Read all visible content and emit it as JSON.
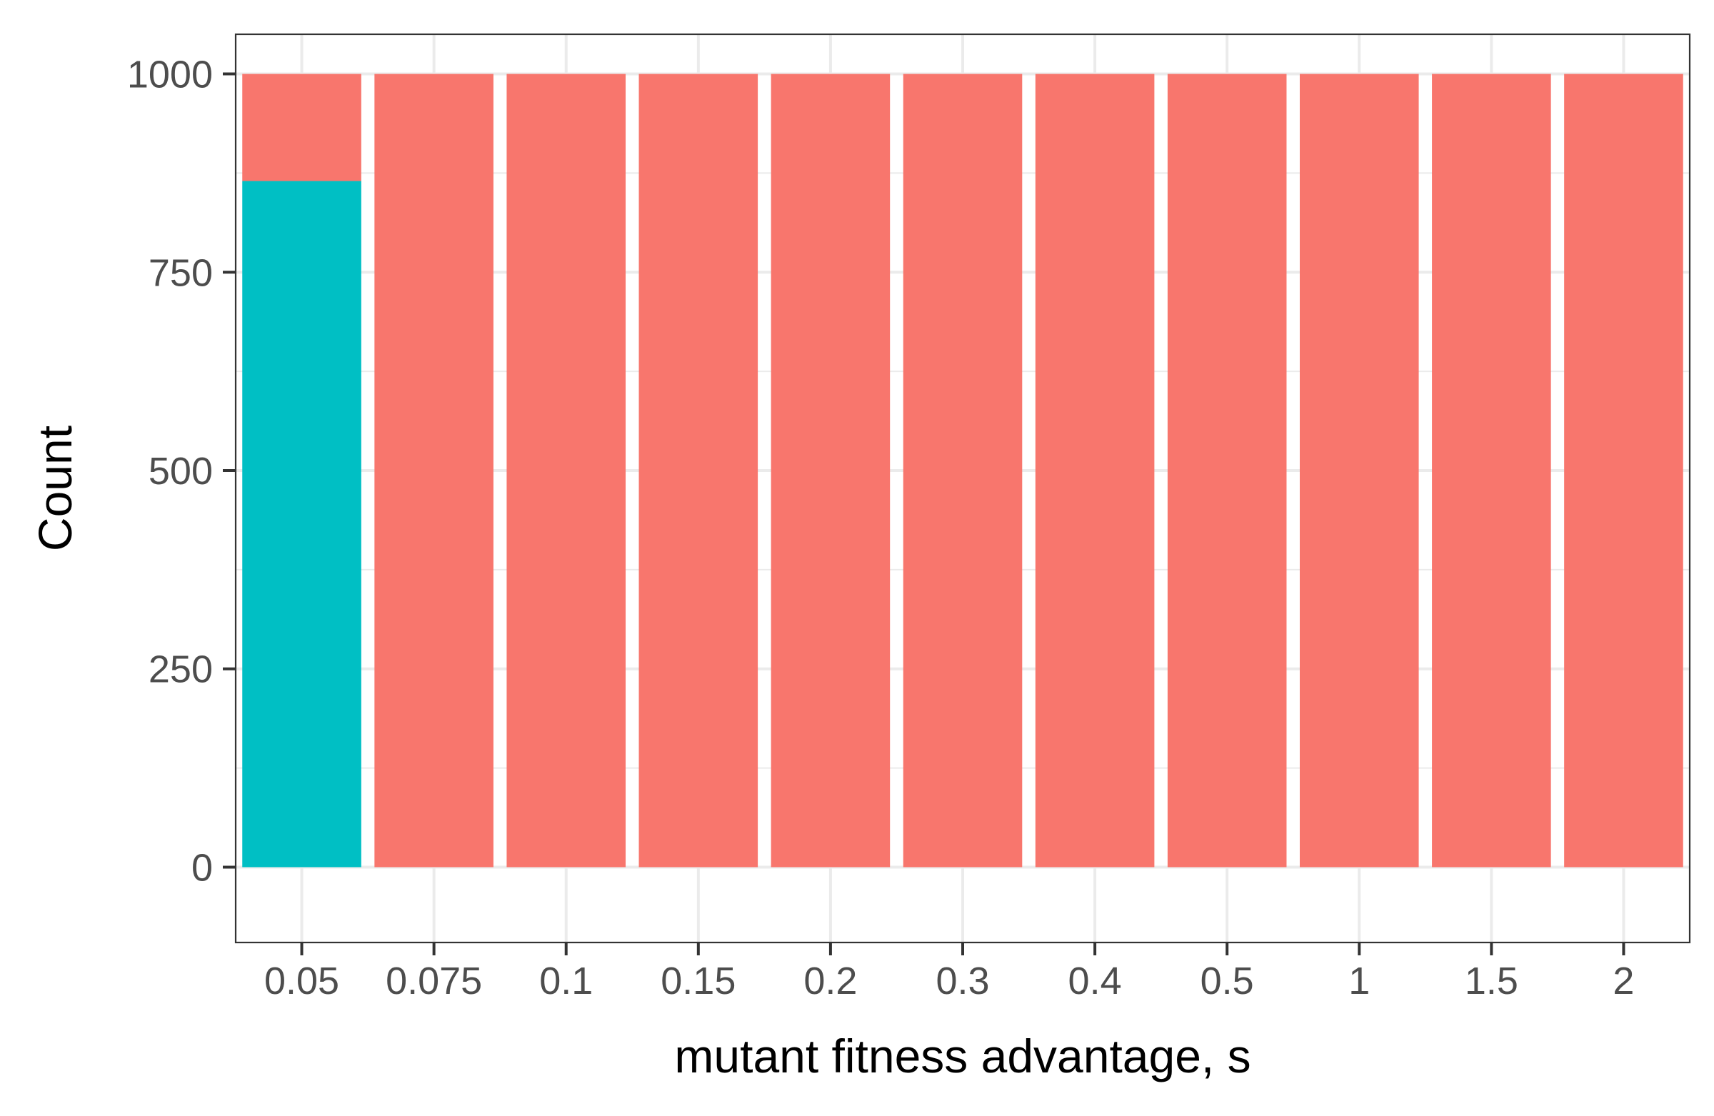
{
  "chart_data": {
    "type": "bar",
    "stacked": true,
    "title": "",
    "xlabel": "mutant fitness advantage, s",
    "ylabel": "Count",
    "categories": [
      "0.05",
      "0.075",
      "0.1",
      "0.15",
      "0.2",
      "0.3",
      "0.4",
      "0.5",
      "1",
      "1.5",
      "2"
    ],
    "series": [
      {
        "color": "#00BFC4",
        "values": [
          865,
          0,
          0,
          0,
          0,
          0,
          0,
          0,
          0,
          0,
          0
        ]
      },
      {
        "color": "#F8766D",
        "values": [
          135,
          1000,
          1000,
          1000,
          1000,
          1000,
          1000,
          1000,
          1000,
          1000,
          1000
        ]
      }
    ],
    "ylim": [
      -95,
      1050
    ],
    "yticks": [
      0,
      250,
      500,
      750,
      1000
    ],
    "ytick_labels": [
      "0",
      "250",
      "500",
      "750",
      "1000"
    ],
    "grid": true,
    "legend": "none"
  }
}
